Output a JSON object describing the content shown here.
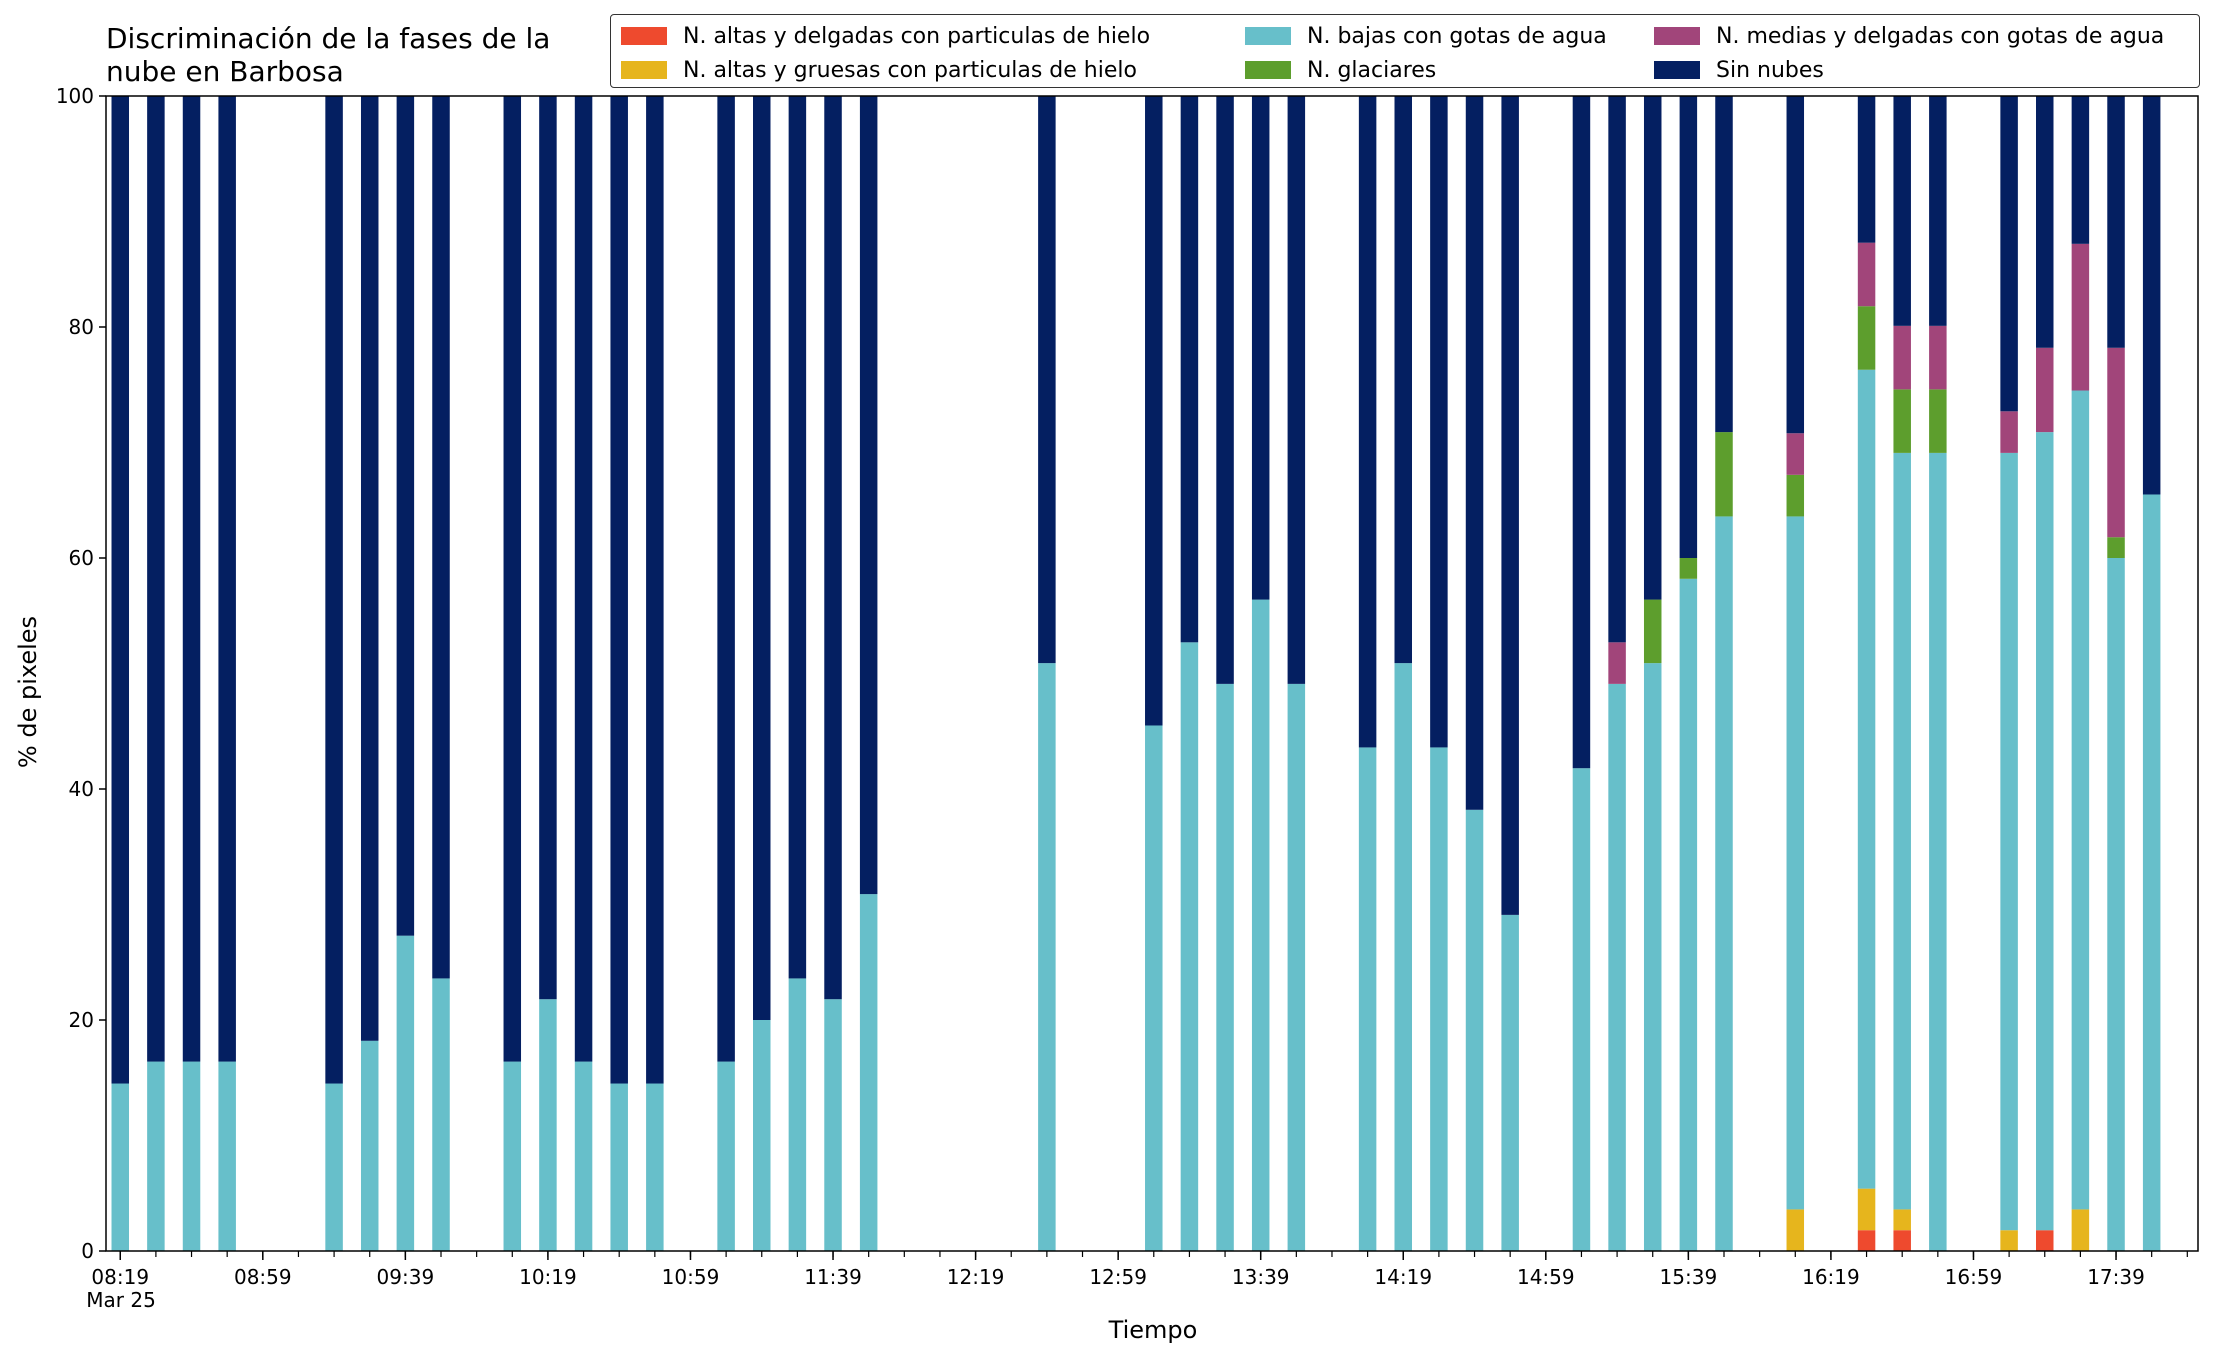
{
  "chart_data": {
    "type": "bar",
    "stacked": true,
    "title_lines": [
      "Discriminación de la fases de la",
      "nube en Barbosa"
    ],
    "xlabel": "Tiempo",
    "ylabel": "% de pixeles",
    "ylim": [
      0,
      100
    ],
    "yticks": [
      "0",
      "20",
      "40",
      "60",
      "80",
      "100"
    ],
    "xlim": [
      "2024-03-25T08:15",
      "2024-03-25T18:02"
    ],
    "x_tick_labels": [
      {
        "t": "2024-03-25T08:19",
        "label": "08:19",
        "sublabel": "Mar 25"
      },
      {
        "t": "2024-03-25T08:59",
        "label": "08:59"
      },
      {
        "t": "2024-03-25T09:39",
        "label": "09:39"
      },
      {
        "t": "2024-03-25T10:19",
        "label": "10:19"
      },
      {
        "t": "2024-03-25T10:59",
        "label": "10:59"
      },
      {
        "t": "2024-03-25T11:39",
        "label": "11:39"
      },
      {
        "t": "2024-03-25T12:19",
        "label": "12:19"
      },
      {
        "t": "2024-03-25T12:59",
        "label": "12:59"
      },
      {
        "t": "2024-03-25T13:39",
        "label": "13:39"
      },
      {
        "t": "2024-03-25T14:19",
        "label": "14:19"
      },
      {
        "t": "2024-03-25T14:59",
        "label": "14:59"
      },
      {
        "t": "2024-03-25T15:39",
        "label": "15:39"
      },
      {
        "t": "2024-03-25T16:19",
        "label": "16:19"
      },
      {
        "t": "2024-03-25T16:59",
        "label": "16:59"
      },
      {
        "t": "2024-03-25T17:39",
        "label": "17:39"
      }
    ],
    "minor_tick_minutes": 10,
    "legend_position": "top-right",
    "series": [
      {
        "name": "N. altas y delgadas con particulas de hielo",
        "key": "altas_delgadas",
        "color": "#ee4a2e"
      },
      {
        "name": "N. altas y gruesas con particulas de hielo",
        "key": "altas_gruesas",
        "color": "#e6b51d"
      },
      {
        "name": "N. bajas con gotas de agua",
        "key": "bajas",
        "color": "#67bfca"
      },
      {
        "name": "N. glaciares",
        "key": "glaciares",
        "color": "#5d9e2d"
      },
      {
        "name": "N. medias y delgadas con gotas de agua",
        "key": "medias",
        "color": "#a1457a"
      },
      {
        "name": "Sin nubes",
        "key": "sin_nubes",
        "color": "#041f61"
      }
    ],
    "bars": [
      {
        "t": "2024-03-25T08:19",
        "values": [
          0,
          0,
          14.5,
          0,
          0,
          85.5
        ]
      },
      {
        "t": "2024-03-25T08:29",
        "values": [
          0,
          0,
          16.4,
          0,
          0,
          83.6
        ]
      },
      {
        "t": "2024-03-25T08:39",
        "values": [
          0,
          0,
          16.4,
          0,
          0,
          83.6
        ]
      },
      {
        "t": "2024-03-25T08:49",
        "values": [
          0,
          0,
          16.4,
          0,
          0,
          83.6
        ]
      },
      {
        "t": "2024-03-25T09:19",
        "values": [
          0,
          0,
          14.5,
          0,
          0,
          85.5
        ]
      },
      {
        "t": "2024-03-25T09:29",
        "values": [
          0,
          0,
          18.2,
          0,
          0,
          81.8
        ]
      },
      {
        "t": "2024-03-25T09:39",
        "values": [
          0,
          0,
          27.3,
          0,
          0,
          72.7
        ]
      },
      {
        "t": "2024-03-25T09:49",
        "values": [
          0,
          0,
          23.6,
          0,
          0,
          76.4
        ]
      },
      {
        "t": "2024-03-25T10:09",
        "values": [
          0,
          0,
          16.4,
          0,
          0,
          83.6
        ]
      },
      {
        "t": "2024-03-25T10:19",
        "values": [
          0,
          0,
          21.8,
          0,
          0,
          78.2
        ]
      },
      {
        "t": "2024-03-25T10:29",
        "values": [
          0,
          0,
          16.4,
          0,
          0,
          83.6
        ]
      },
      {
        "t": "2024-03-25T10:39",
        "values": [
          0,
          0,
          14.5,
          0,
          0,
          85.5
        ]
      },
      {
        "t": "2024-03-25T10:49",
        "values": [
          0,
          0,
          14.5,
          0,
          0,
          85.5
        ]
      },
      {
        "t": "2024-03-25T11:09",
        "values": [
          0,
          0,
          16.4,
          0,
          0,
          83.6
        ]
      },
      {
        "t": "2024-03-25T11:19",
        "values": [
          0,
          0,
          20.0,
          0,
          0,
          80.0
        ]
      },
      {
        "t": "2024-03-25T11:29",
        "values": [
          0,
          0,
          23.6,
          0,
          0,
          76.4
        ]
      },
      {
        "t": "2024-03-25T11:39",
        "values": [
          0,
          0,
          21.8,
          0,
          0,
          78.2
        ]
      },
      {
        "t": "2024-03-25T11:49",
        "values": [
          0,
          0,
          30.9,
          0,
          0,
          69.1
        ]
      },
      {
        "t": "2024-03-25T12:39",
        "values": [
          0,
          0,
          50.9,
          0,
          0,
          49.1
        ]
      },
      {
        "t": "2024-03-25T13:09",
        "values": [
          0,
          0,
          45.5,
          0,
          0,
          54.5
        ]
      },
      {
        "t": "2024-03-25T13:19",
        "values": [
          0,
          0,
          52.7,
          0,
          0,
          47.3
        ]
      },
      {
        "t": "2024-03-25T13:29",
        "values": [
          0,
          0,
          49.1,
          0,
          0,
          50.9
        ]
      },
      {
        "t": "2024-03-25T13:39",
        "values": [
          0,
          0,
          56.4,
          0,
          0,
          43.6
        ]
      },
      {
        "t": "2024-03-25T13:49",
        "values": [
          0,
          0,
          49.1,
          0,
          0,
          50.9
        ]
      },
      {
        "t": "2024-03-25T14:09",
        "values": [
          0,
          0,
          43.6,
          0,
          0,
          56.4
        ]
      },
      {
        "t": "2024-03-25T14:19",
        "values": [
          0,
          0,
          50.9,
          0,
          0,
          49.1
        ]
      },
      {
        "t": "2024-03-25T14:29",
        "values": [
          0,
          0,
          43.6,
          0,
          0,
          56.4
        ]
      },
      {
        "t": "2024-03-25T14:39",
        "values": [
          0,
          0,
          38.2,
          0,
          0,
          61.8
        ]
      },
      {
        "t": "2024-03-25T14:49",
        "values": [
          0,
          0,
          29.1,
          0,
          0,
          70.9
        ]
      },
      {
        "t": "2024-03-25T15:09",
        "values": [
          0,
          0,
          41.8,
          0,
          0,
          58.2
        ]
      },
      {
        "t": "2024-03-25T15:19",
        "values": [
          0,
          0,
          49.1,
          0,
          3.6,
          47.3
        ]
      },
      {
        "t": "2024-03-25T15:29",
        "values": [
          0,
          0,
          50.9,
          5.5,
          0,
          43.6
        ]
      },
      {
        "t": "2024-03-25T15:39",
        "values": [
          0,
          0,
          58.2,
          1.8,
          0,
          40.0
        ]
      },
      {
        "t": "2024-03-25T15:49",
        "values": [
          0,
          0,
          63.6,
          7.3,
          0,
          29.1
        ]
      },
      {
        "t": "2024-03-25T16:09",
        "values": [
          0,
          3.6,
          60.0,
          3.6,
          3.6,
          29.2
        ]
      },
      {
        "t": "2024-03-25T16:29",
        "values": [
          1.8,
          3.6,
          70.9,
          5.5,
          5.5,
          12.7
        ]
      },
      {
        "t": "2024-03-25T16:39",
        "values": [
          1.8,
          1.8,
          65.5,
          5.5,
          5.5,
          19.9
        ]
      },
      {
        "t": "2024-03-25T16:49",
        "values": [
          0,
          0,
          69.1,
          5.5,
          5.5,
          19.9
        ]
      },
      {
        "t": "2024-03-25T17:09",
        "values": [
          0,
          1.8,
          67.3,
          0,
          3.6,
          27.3
        ]
      },
      {
        "t": "2024-03-25T17:19",
        "values": [
          1.8,
          0,
          69.1,
          0,
          7.3,
          21.8
        ]
      },
      {
        "t": "2024-03-25T17:29",
        "values": [
          0,
          3.6,
          70.9,
          0,
          12.7,
          12.8
        ]
      },
      {
        "t": "2024-03-25T17:39",
        "values": [
          0,
          0,
          60.0,
          1.8,
          16.4,
          21.8
        ]
      },
      {
        "t": "2024-03-25T17:49",
        "values": [
          0,
          0,
          65.5,
          0,
          0,
          34.5
        ]
      }
    ]
  }
}
